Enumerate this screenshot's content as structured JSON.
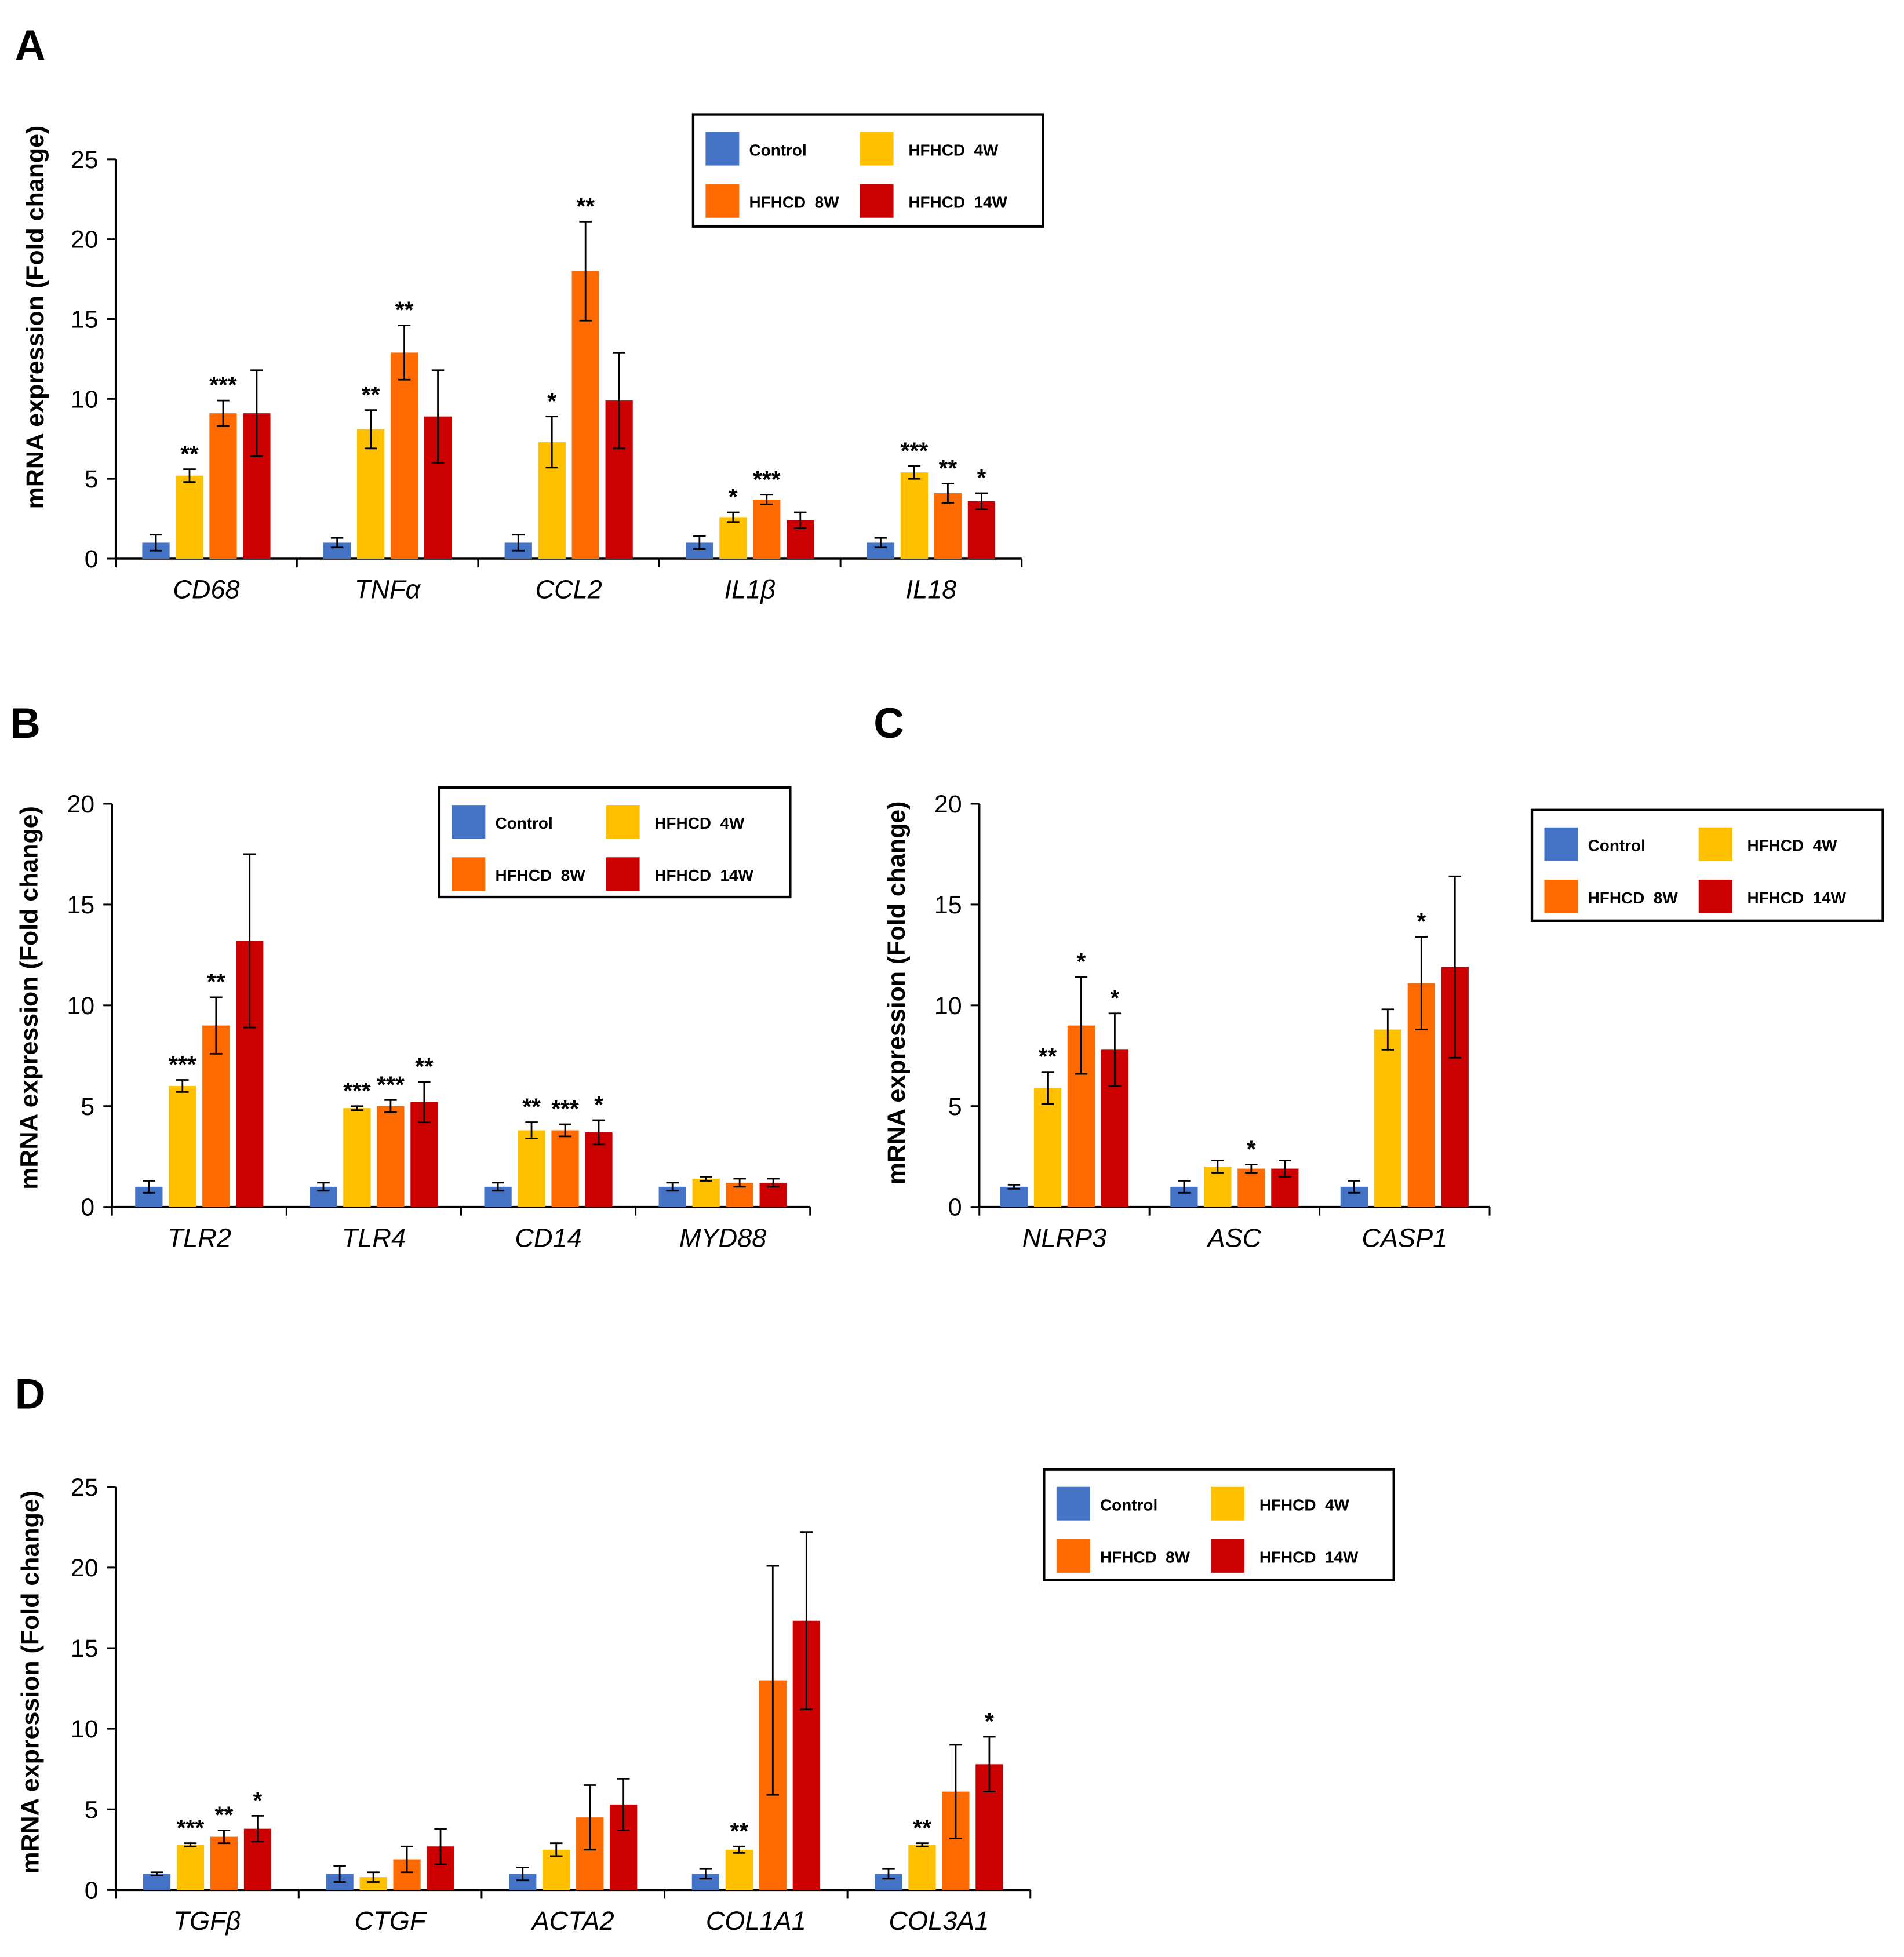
{
  "colors": {
    "Control": "#4472C4",
    "HFHCD 4W": "#FFC000",
    "HFHCD 8W": "#FF6A00",
    "HFHCD 14W": "#CC0000",
    "axis": "#000000"
  },
  "chart_data": [
    {
      "type": "bar",
      "panel_label": "A",
      "ylabel": "mRNA expression  (Fold change)",
      "ylim": [
        0,
        25
      ],
      "yticks": [
        0,
        5,
        10,
        15,
        20,
        25
      ],
      "categories": [
        "CD68",
        "TNFα",
        "CCL2",
        "IL1β",
        "IL18"
      ],
      "legend": [
        "Control",
        "HFHCD  4W",
        "HFHCD  8W",
        "HFHCD  14W"
      ],
      "series": [
        {
          "name": "Control",
          "color_key": "Control",
          "values": [
            1.0,
            1.0,
            1.0,
            1.0,
            1.0
          ],
          "errors": [
            0.5,
            0.3,
            0.5,
            0.4,
            0.3
          ],
          "stars": [
            "",
            "",
            "",
            "",
            ""
          ]
        },
        {
          "name": "HFHCD 4W",
          "color_key": "HFHCD 4W",
          "values": [
            5.2,
            8.1,
            7.3,
            2.6,
            5.4
          ],
          "errors": [
            0.4,
            1.2,
            1.6,
            0.3,
            0.4
          ],
          "stars": [
            "**",
            "**",
            "*",
            "*",
            "***"
          ]
        },
        {
          "name": "HFHCD 8W",
          "color_key": "HFHCD 8W",
          "values": [
            9.1,
            12.9,
            18.0,
            3.7,
            4.1
          ],
          "errors": [
            0.8,
            1.7,
            3.1,
            0.3,
            0.6
          ],
          "stars": [
            "***",
            "**",
            "**",
            "***",
            "**"
          ]
        },
        {
          "name": "HFHCD 14W",
          "color_key": "HFHCD 14W",
          "values": [
            9.1,
            8.9,
            9.9,
            2.4,
            3.6
          ],
          "errors": [
            2.7,
            2.9,
            3.0,
            0.5,
            0.5
          ],
          "stars": [
            "",
            "",
            "",
            "",
            "*"
          ]
        }
      ]
    },
    {
      "type": "bar",
      "panel_label": "B",
      "ylabel": "mRNA expression  (Fold change)",
      "ylim": [
        0,
        20
      ],
      "yticks": [
        0,
        5,
        10,
        15,
        20
      ],
      "categories": [
        "TLR2",
        "TLR4",
        "CD14",
        "MYD88"
      ],
      "legend": [
        "Control",
        "HFHCD  4W",
        "HFHCD  8W",
        "HFHCD  14W"
      ],
      "series": [
        {
          "name": "Control",
          "color_key": "Control",
          "values": [
            1.0,
            1.0,
            1.0,
            1.0
          ],
          "errors": [
            0.3,
            0.2,
            0.2,
            0.2
          ],
          "stars": [
            "",
            "",
            "",
            ""
          ]
        },
        {
          "name": "HFHCD 4W",
          "color_key": "HFHCD 4W",
          "values": [
            6.0,
            4.9,
            3.8,
            1.4
          ],
          "errors": [
            0.3,
            0.1,
            0.4,
            0.1
          ],
          "stars": [
            "***",
            "***",
            "**",
            ""
          ]
        },
        {
          "name": "HFHCD 8W",
          "color_key": "HFHCD 8W",
          "values": [
            9.0,
            5.0,
            3.8,
            1.2
          ],
          "errors": [
            1.4,
            0.3,
            0.3,
            0.2
          ],
          "stars": [
            "**",
            "***",
            "***",
            ""
          ]
        },
        {
          "name": "HFHCD 14W",
          "color_key": "HFHCD 14W",
          "values": [
            13.2,
            5.2,
            3.7,
            1.2
          ],
          "errors": [
            4.3,
            1.0,
            0.6,
            0.2
          ],
          "stars": [
            "",
            "**",
            "*",
            ""
          ]
        }
      ]
    },
    {
      "type": "bar",
      "panel_label": "C",
      "ylabel": "mRNA expression  (Fold change)",
      "ylim": [
        0,
        20
      ],
      "yticks": [
        0,
        5,
        10,
        15,
        20
      ],
      "categories": [
        "NLRP3",
        "ASC",
        "CASP1"
      ],
      "legend": [
        "Control",
        "HFHCD  4W",
        "HFHCD  8W",
        "HFHCD  14W"
      ],
      "series": [
        {
          "name": "Control",
          "color_key": "Control",
          "values": [
            1.0,
            1.0,
            1.0
          ],
          "errors": [
            0.1,
            0.3,
            0.3
          ],
          "stars": [
            "",
            "",
            ""
          ]
        },
        {
          "name": "HFHCD 4W",
          "color_key": "HFHCD 4W",
          "values": [
            5.9,
            2.0,
            8.8
          ],
          "errors": [
            0.8,
            0.3,
            1.0
          ],
          "stars": [
            "**",
            "",
            ""
          ]
        },
        {
          "name": "HFHCD 8W",
          "color_key": "HFHCD 8W",
          "values": [
            9.0,
            1.9,
            11.1
          ],
          "errors": [
            2.4,
            0.2,
            2.3
          ],
          "stars": [
            "*",
            "*",
            "*"
          ]
        },
        {
          "name": "HFHCD 14W",
          "color_key": "HFHCD 14W",
          "values": [
            7.8,
            1.9,
            11.9
          ],
          "errors": [
            1.8,
            0.4,
            4.5
          ],
          "stars": [
            "*",
            "",
            ""
          ]
        }
      ]
    },
    {
      "type": "bar",
      "panel_label": "D",
      "ylabel": "mRNA expression  (Fold change)",
      "ylim": [
        0,
        25
      ],
      "yticks": [
        0,
        5,
        10,
        15,
        20,
        25
      ],
      "categories": [
        "TGFβ",
        "CTGF",
        "ACTA2",
        "COL1A1",
        "COL3A1"
      ],
      "legend": [
        "Control",
        "HFHCD  4W",
        "HFHCD  8W",
        "HFHCD  14W"
      ],
      "series": [
        {
          "name": "Control",
          "color_key": "Control",
          "values": [
            1.0,
            1.0,
            1.0,
            1.0,
            1.0
          ],
          "errors": [
            0.1,
            0.5,
            0.4,
            0.3,
            0.3
          ],
          "stars": [
            "",
            "",
            "",
            "",
            ""
          ]
        },
        {
          "name": "HFHCD 4W",
          "color_key": "HFHCD 4W",
          "values": [
            2.8,
            0.8,
            2.5,
            2.5,
            2.8
          ],
          "errors": [
            0.1,
            0.3,
            0.4,
            0.2,
            0.1
          ],
          "stars": [
            "***",
            "",
            "",
            "**",
            "**"
          ]
        },
        {
          "name": "HFHCD 8W",
          "color_key": "HFHCD 8W",
          "values": [
            3.3,
            1.9,
            4.5,
            13.0,
            6.1
          ],
          "errors": [
            0.4,
            0.8,
            2.0,
            7.1,
            2.9
          ],
          "stars": [
            "**",
            "",
            "",
            "",
            ""
          ]
        },
        {
          "name": "HFHCD 14W",
          "color_key": "HFHCD 14W",
          "values": [
            3.8,
            2.7,
            5.3,
            16.7,
            7.8
          ],
          "errors": [
            0.8,
            1.1,
            1.6,
            5.5,
            1.7
          ],
          "stars": [
            "*",
            "",
            "",
            "",
            "*"
          ]
        }
      ]
    }
  ]
}
